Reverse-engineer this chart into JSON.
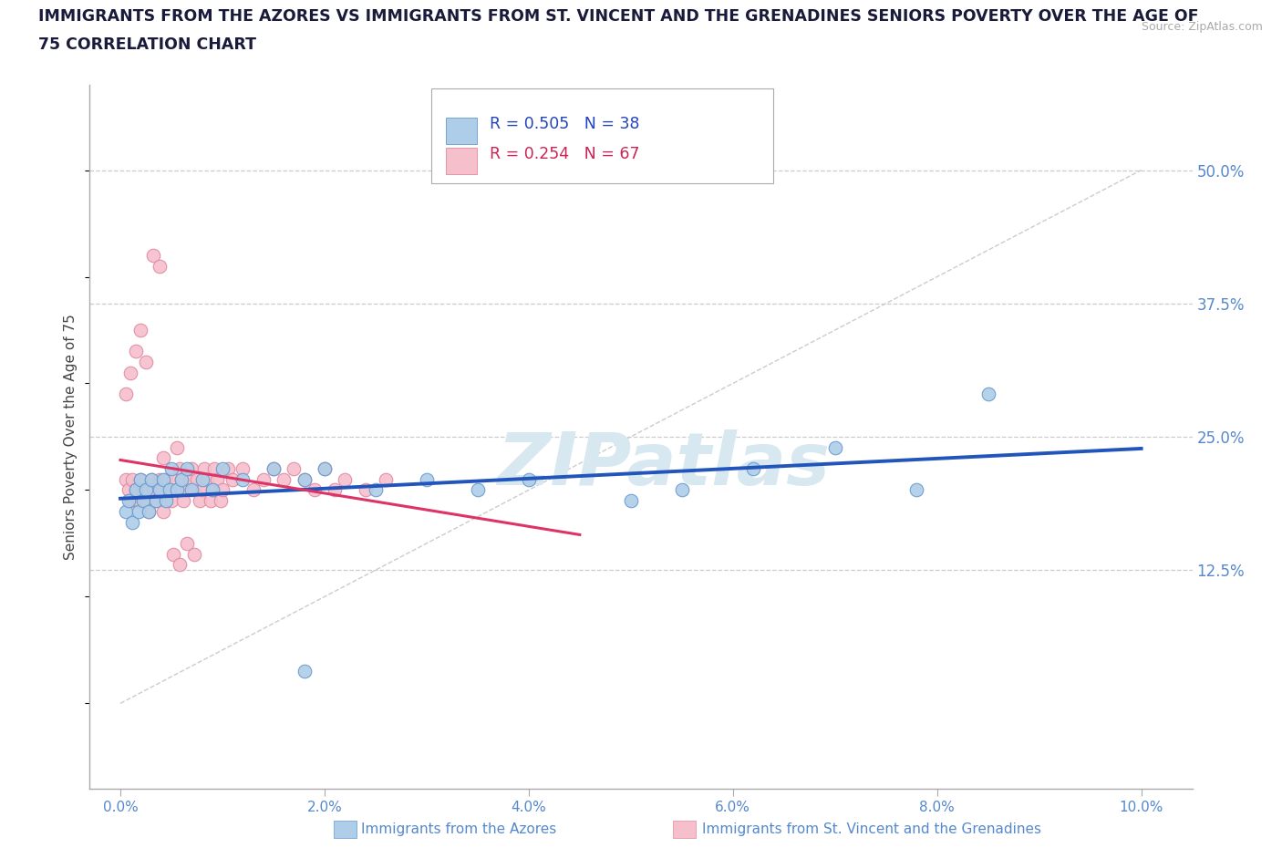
{
  "title_line1": "IMMIGRANTS FROM THE AZORES VS IMMIGRANTS FROM ST. VINCENT AND THE GRENADINES SENIORS POVERTY OVER THE AGE OF",
  "title_line2": "75 CORRELATION CHART",
  "source": "Source: ZipAtlas.com",
  "ylabel": "Seniors Poverty Over the Age of 75",
  "blue_label": "Immigrants from the Azores",
  "pink_label": "Immigrants from St. Vincent and the Grenadines",
  "blue_R": "0.505",
  "blue_N": "38",
  "pink_R": "0.254",
  "pink_N": "67",
  "blue_fill": "#aecde8",
  "pink_fill": "#f5bfcc",
  "blue_edge": "#6699cc",
  "pink_edge": "#e088a0",
  "trend_blue": "#2255bb",
  "trend_pink": "#dd3366",
  "diag_color": "#cccccc",
  "hline_color": "#cccccc",
  "tick_label_color": "#5588cc",
  "title_color": "#1a1a3a",
  "source_color": "#aaaaaa",
  "watermark_color": "#d8e8f0",
  "xlim": [
    -0.3,
    10.5
  ],
  "ylim": [
    -8,
    58
  ],
  "blue_x": [
    0.05,
    0.08,
    0.12,
    0.15,
    0.18,
    0.2,
    0.22,
    0.25,
    0.28,
    0.3,
    0.35,
    0.38,
    0.42,
    0.45,
    0.48,
    0.5,
    0.55,
    0.6,
    0.65,
    0.7,
    0.8,
    0.9,
    1.0,
    1.2,
    1.5,
    1.8,
    2.0,
    2.5,
    3.0,
    3.5,
    4.0,
    5.0,
    5.5,
    6.2,
    7.0,
    7.8,
    8.5,
    1.8
  ],
  "blue_y": [
    18,
    19,
    17,
    20,
    18,
    21,
    19,
    20,
    18,
    21,
    19,
    20,
    21,
    19,
    20,
    22,
    20,
    21,
    22,
    20,
    21,
    20,
    22,
    21,
    22,
    21,
    22,
    20,
    21,
    20,
    21,
    19,
    20,
    22,
    24,
    20,
    29,
    3
  ],
  "pink_x": [
    0.05,
    0.08,
    0.1,
    0.12,
    0.15,
    0.18,
    0.2,
    0.22,
    0.25,
    0.28,
    0.3,
    0.32,
    0.35,
    0.38,
    0.4,
    0.42,
    0.45,
    0.48,
    0.5,
    0.52,
    0.55,
    0.58,
    0.6,
    0.62,
    0.65,
    0.68,
    0.7,
    0.72,
    0.75,
    0.78,
    0.8,
    0.82,
    0.85,
    0.88,
    0.9,
    0.92,
    0.95,
    0.98,
    1.0,
    1.05,
    1.1,
    1.2,
    1.3,
    1.4,
    1.5,
    1.6,
    1.7,
    1.8,
    1.9,
    2.0,
    2.1,
    2.2,
    2.4,
    2.6,
    0.05,
    0.1,
    0.15,
    0.2,
    0.25,
    0.32,
    0.38,
    0.52,
    0.58,
    0.65,
    0.72,
    0.42,
    0.55
  ],
  "pink_y": [
    21,
    20,
    19,
    21,
    20,
    19,
    21,
    20,
    19,
    18,
    21,
    20,
    19,
    21,
    20,
    18,
    21,
    20,
    19,
    21,
    20,
    22,
    21,
    19,
    20,
    21,
    22,
    20,
    21,
    19,
    20,
    22,
    21,
    19,
    20,
    22,
    21,
    19,
    20,
    22,
    21,
    22,
    20,
    21,
    22,
    21,
    22,
    21,
    20,
    22,
    20,
    21,
    20,
    21,
    29,
    31,
    33,
    35,
    32,
    42,
    41,
    14,
    13,
    15,
    14,
    23,
    24
  ]
}
